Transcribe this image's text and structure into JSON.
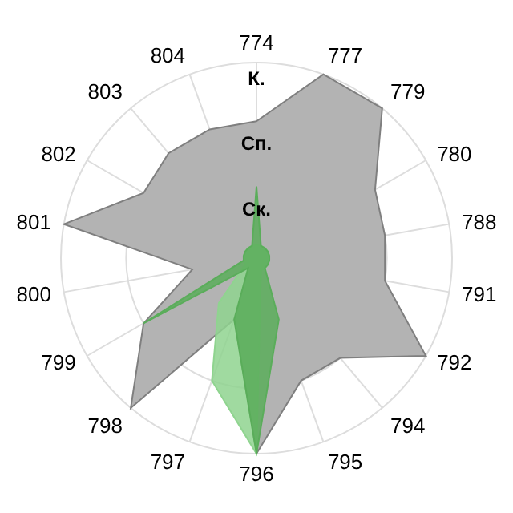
{
  "chart_data": {
    "type": "radar",
    "categories": [
      "774",
      "777",
      "779",
      "780",
      "788",
      "791",
      "792",
      "794",
      "795",
      "796",
      "797",
      "798",
      "799",
      "800",
      "801",
      "802",
      "803",
      "804"
    ],
    "series": [
      {
        "color": "#b3b3b3",
        "values": [
          2.1,
          3,
          3,
          2.1,
          2,
          2,
          3,
          2,
          2,
          3,
          1,
          3,
          2,
          1,
          3,
          2,
          2.1,
          2.1
        ]
      },
      {
        "color": "#8fd48f",
        "values": [
          0.2,
          0.2,
          0.2,
          0.2,
          0.2,
          0.2,
          0.2,
          0.2,
          0.2,
          3,
          2,
          0.9,
          0.2,
          0.2,
          0.2,
          0.2,
          0.2,
          0.2
        ]
      },
      {
        "color": "#5aad5a",
        "values": [
          1.1,
          0.2,
          0.2,
          0.2,
          0.2,
          0.2,
          0.2,
          0.2,
          1,
          3,
          1,
          0.2,
          2,
          0.2,
          0.2,
          0.2,
          0.2,
          0.2
        ]
      }
    ],
    "ylim": [
      0,
      3
    ],
    "yticks": [
      {
        "value": 1,
        "label": "Ск."
      },
      {
        "value": 2,
        "label": "Сп."
      },
      {
        "value": 3,
        "label": "К."
      }
    ],
    "grid": true,
    "legend": false
  }
}
